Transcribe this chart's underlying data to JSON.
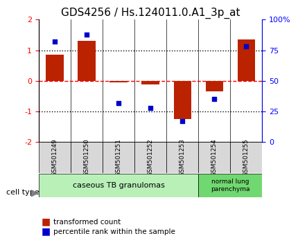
{
  "title": "GDS4256 / Hs.124011.0.A1_3p_at",
  "samples": [
    "GSM501249",
    "GSM501250",
    "GSM501251",
    "GSM501252",
    "GSM501253",
    "GSM501254",
    "GSM501255"
  ],
  "red_bars": [
    0.85,
    1.3,
    -0.05,
    -0.12,
    -1.25,
    -0.35,
    1.35
  ],
  "blue_dots": [
    82,
    88,
    32,
    28,
    17,
    35,
    78
  ],
  "ylim_left": [
    -2,
    2
  ],
  "ylim_right": [
    0,
    100
  ],
  "yticks_left": [
    -2,
    -1,
    0,
    1,
    2
  ],
  "yticks_right": [
    0,
    25,
    50,
    75,
    100
  ],
  "ytick_labels_right": [
    "0",
    "25",
    "50",
    "75",
    "100%"
  ],
  "hlines_dotted": [
    1.0,
    -1.0
  ],
  "hline_dashed_red": 0.0,
  "bar_color": "#bb2200",
  "dot_color": "#0000cc",
  "cell_type_groups": [
    {
      "label": "caseous TB granulomas",
      "samples": [
        0,
        1,
        2,
        3,
        4
      ],
      "color": "#c8f0c8"
    },
    {
      "label": "normal lung\nparenchyma",
      "samples": [
        5,
        6
      ],
      "color": "#90d890"
    }
  ],
  "legend_red_label": "transformed count",
  "legend_blue_label": "percentile rank within the sample",
  "cell_type_text": "cell type",
  "title_fontsize": 11,
  "axis_label_fontsize": 8,
  "tick_fontsize": 8,
  "bar_width": 0.55
}
